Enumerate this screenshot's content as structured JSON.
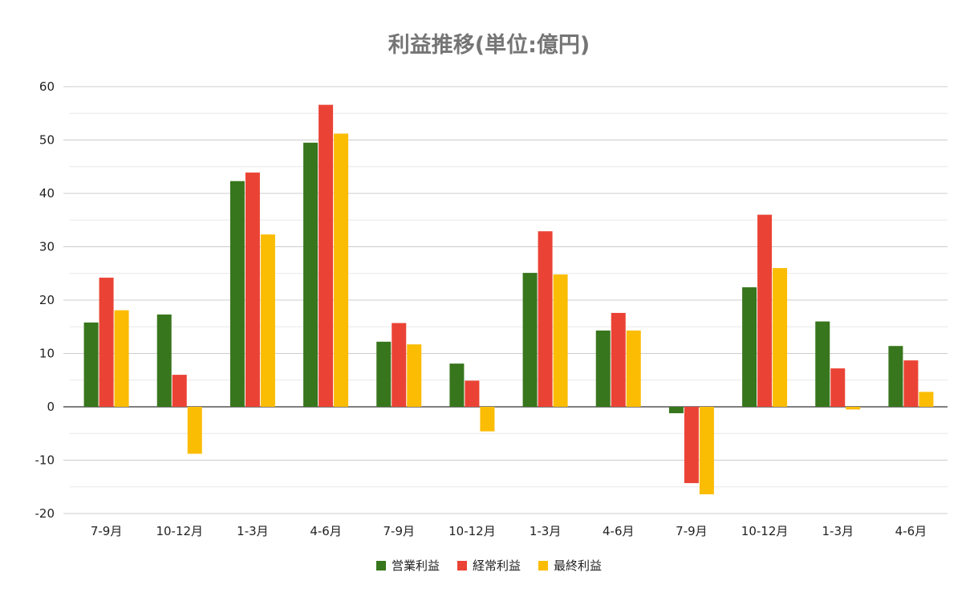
{
  "chart_data": {
    "type": "bar",
    "title": "利益推移(単位:億円)",
    "xlabel": "",
    "ylabel": "",
    "ylim": [
      -20,
      60
    ],
    "yticks": [
      60,
      50,
      40,
      30,
      20,
      10,
      0,
      -10,
      -20
    ],
    "grid": true,
    "legend_position": "bottom",
    "categories": [
      "7-9月",
      "10-12月",
      "1-3月",
      "4-6月",
      "7-9月",
      "10-12月",
      "1-3月",
      "4-6月",
      "7-9月",
      "10-12月",
      "1-3月",
      "4-6月"
    ],
    "series": [
      {
        "name": "営業利益",
        "color": "#38761d",
        "values": [
          15.8,
          17.3,
          42.3,
          49.5,
          12.2,
          8.1,
          25.1,
          14.3,
          -1.2,
          22.4,
          16.0,
          11.4
        ]
      },
      {
        "name": "経常利益",
        "color": "#ea4335",
        "values": [
          24.2,
          6.0,
          43.9,
          56.6,
          15.7,
          4.9,
          32.9,
          17.6,
          -14.3,
          36.0,
          7.2,
          8.7
        ]
      },
      {
        "name": "最終利益",
        "color": "#fbbc04",
        "values": [
          18.1,
          -8.8,
          32.3,
          51.2,
          11.7,
          -4.6,
          24.8,
          14.3,
          -16.4,
          26.0,
          -0.5,
          2.8
        ]
      }
    ]
  }
}
